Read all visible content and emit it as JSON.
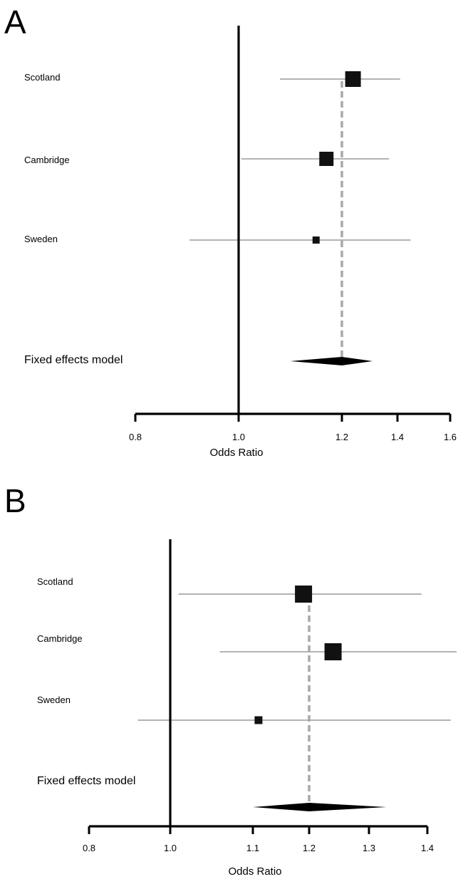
{
  "chart_data": [
    {
      "type": "forest",
      "panel_label": "A",
      "xlabel": "Odds Ratio",
      "xlim": [
        0.8,
        1.6
      ],
      "ticks": [
        0.8,
        1.0,
        1.2,
        1.4,
        1.6
      ],
      "tick_labels": [
        "0.8",
        "1.0",
        "1.2",
        "1.4",
        "1.6"
      ],
      "null_line": 1.0,
      "studies": [
        {
          "name": "Scotland",
          "or": 1.24,
          "lower": 1.08,
          "upper": 1.41,
          "weight": "large"
        },
        {
          "name": "Cambridge",
          "or": 1.17,
          "lower": 1.005,
          "upper": 1.37,
          "weight": "medium"
        },
        {
          "name": "Sweden",
          "or": 1.15,
          "lower": 0.905,
          "upper": 1.45,
          "weight": "small"
        }
      ],
      "summary": {
        "name": "Fixed effects model",
        "or": 1.2,
        "lower": 1.1,
        "upper": 1.31
      }
    },
    {
      "type": "forest",
      "panel_label": "B",
      "xlabel": "Odds Ratio",
      "xlim": [
        0.8,
        1.4
      ],
      "ticks": [
        0.8,
        1.0,
        1.1,
        1.2,
        1.3,
        1.4
      ],
      "tick_labels": [
        "0.8",
        "1.0",
        "1.1",
        "1.2",
        "1.3",
        "1.4"
      ],
      "null_line": 1.0,
      "studies": [
        {
          "name": "Scotland",
          "or": 1.19,
          "lower": 1.01,
          "upper": 1.39,
          "weight": "large"
        },
        {
          "name": "Cambridge",
          "or": 1.24,
          "lower": 1.06,
          "upper": 1.45,
          "weight": "large"
        },
        {
          "name": "Sweden",
          "or": 1.11,
          "lower": 0.92,
          "upper": 1.44,
          "weight": "small"
        }
      ],
      "summary": {
        "name": "Fixed effects model",
        "or": 1.2,
        "lower": 1.1,
        "upper": 1.33
      }
    }
  ]
}
